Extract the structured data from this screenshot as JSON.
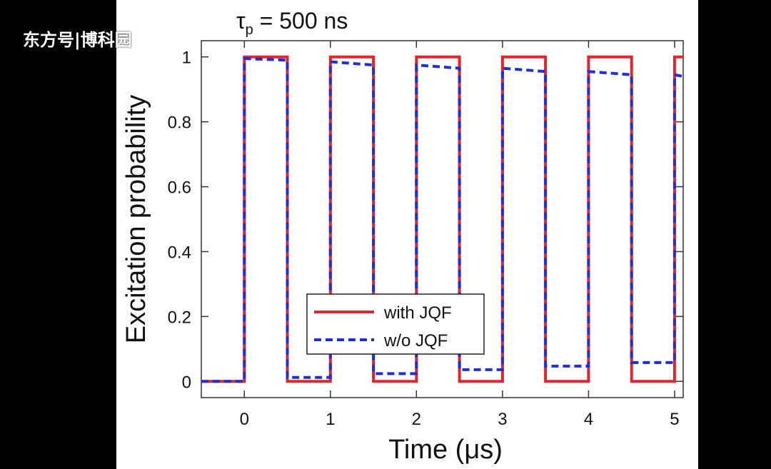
{
  "watermark": "东方号|博科园",
  "chart_data": {
    "type": "line",
    "title_symbol": "τ",
    "title_subscript": "p",
    "title_rest": " = 500 ns",
    "xlabel": "Time (μs)",
    "ylabel": "Excitation probability",
    "xlim": [
      -0.5,
      5.1
    ],
    "ylim": [
      -0.05,
      1.05
    ],
    "xticks": [
      "0",
      "1",
      "2",
      "3",
      "4",
      "5"
    ],
    "yticks": [
      "0",
      "0.2",
      "0.4",
      "0.6",
      "0.8",
      "1"
    ],
    "legend_position": "lower-center",
    "series": [
      {
        "name": "with JQF",
        "color": "#e0262c",
        "dash": "solid",
        "x": [
          -0.5,
          0.0,
          0.0,
          0.5,
          0.5,
          1.0,
          1.0,
          1.5,
          1.5,
          2.0,
          2.0,
          2.5,
          2.5,
          3.0,
          3.0,
          3.5,
          3.5,
          4.0,
          4.0,
          4.5,
          4.5,
          5.0,
          5.0,
          5.1
        ],
        "y": [
          0,
          0,
          1,
          1,
          0,
          0,
          1,
          1,
          0,
          0,
          1,
          1,
          0,
          0,
          1,
          1,
          0,
          0,
          1,
          1,
          0,
          0,
          1,
          1
        ]
      },
      {
        "name": "w/o JQF",
        "color": "#1f2fd6",
        "dash": "dashed",
        "x": [
          -0.5,
          0.0,
          0.0,
          0.5,
          0.5,
          1.0,
          1.0,
          1.5,
          1.5,
          2.0,
          2.0,
          2.5,
          2.5,
          3.0,
          3.0,
          3.5,
          3.5,
          4.0,
          4.0,
          4.5,
          4.5,
          5.0,
          5.0,
          5.1
        ],
        "y": [
          0,
          0,
          0.995,
          0.99,
          0.012,
          0.012,
          0.985,
          0.975,
          0.024,
          0.024,
          0.975,
          0.965,
          0.036,
          0.036,
          0.965,
          0.955,
          0.047,
          0.047,
          0.955,
          0.945,
          0.058,
          0.058,
          0.945,
          0.94
        ]
      }
    ]
  }
}
